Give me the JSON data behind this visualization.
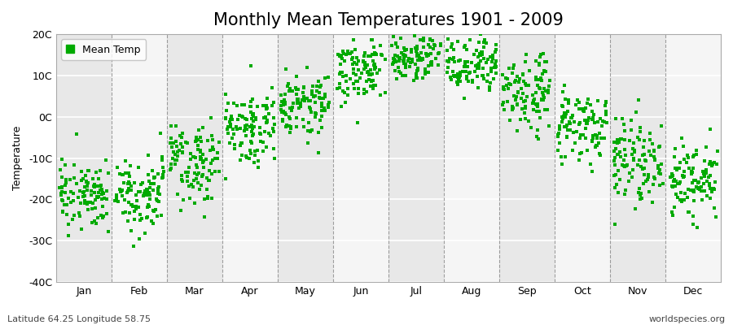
{
  "title": "Monthly Mean Temperatures 1901 - 2009",
  "ylabel": "Temperature",
  "subtitle_left": "Latitude 64.25 Longitude 58.75",
  "subtitle_right": "worldspecies.org",
  "dot_color": "#00aa00",
  "background_color": "#ffffff",
  "stripe_colors": [
    "#e8e8e8",
    "#f5f5f5"
  ],
  "ylim": [
    -40,
    20
  ],
  "yticks": [
    -40,
    -30,
    -20,
    -10,
    0,
    10,
    20
  ],
  "ytick_labels": [
    "-40C",
    "-30C",
    "-20C",
    "-10C",
    "0C",
    "10C",
    "20C"
  ],
  "months": [
    "Jan",
    "Feb",
    "Mar",
    "Apr",
    "May",
    "Jun",
    "Jul",
    "Aug",
    "Sep",
    "Oct",
    "Nov",
    "Dec"
  ],
  "month_means": [
    -18.5,
    -17.5,
    -11.0,
    -2.5,
    3.5,
    11.5,
    14.5,
    12.0,
    5.5,
    -2.5,
    -10.5,
    -15.5
  ],
  "month_stds": [
    4.5,
    5.0,
    4.5,
    4.0,
    4.0,
    3.5,
    3.0,
    3.5,
    4.0,
    4.5,
    5.0,
    4.5
  ],
  "n_years": 109,
  "seed": 17,
  "marker_size": 5,
  "title_fontsize": 15,
  "axis_fontsize": 9,
  "tick_fontsize": 9,
  "legend_fontsize": 9
}
